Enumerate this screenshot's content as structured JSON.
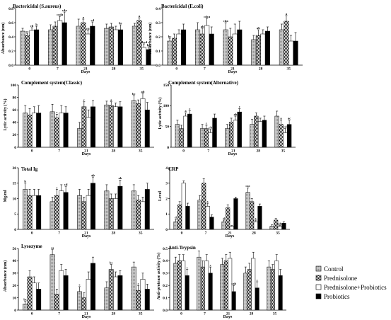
{
  "figure": {
    "groups": [
      "Control",
      "Prednisolone",
      "Prednisolone+Probiotics",
      "Probiotics"
    ],
    "group_styles": [
      {
        "fill": "#bdbdbd",
        "pattern": "grey"
      },
      {
        "fill": "#222222",
        "pattern": "check"
      },
      {
        "fill": "#ffffff",
        "pattern": "none"
      },
      {
        "fill": "#000000",
        "pattern": "none"
      }
    ]
  },
  "legend": {
    "position": "bottom-right",
    "items": [
      "Control",
      "Prednisolone",
      "Prednisolone+Probiotics",
      "Probiotics"
    ]
  },
  "chart_data": [
    {
      "type": "bar",
      "title": "Bactericidal (S.aureus)",
      "ylabel": "Absorbance (nm)",
      "xlabel": "Days",
      "categories": [
        "0",
        "7",
        "21",
        "28",
        "35"
      ],
      "ylim": [
        0,
        0.8
      ],
      "yticks": [
        0.0,
        0.2,
        0.4,
        0.6,
        0.8
      ],
      "ytick_labels": [
        "0.0",
        "0.2",
        "0.4",
        "0.6",
        "0.8"
      ],
      "series": [
        {
          "name": "Control",
          "values": [
            0.48,
            0.5,
            0.55,
            0.52,
            0.55
          ],
          "errors": [
            0.04,
            0.07,
            0.1,
            0.06,
            0.04
          ],
          "labels": [
            "",
            "",
            "",
            "",
            ""
          ]
        },
        {
          "name": "Prednisolone",
          "values": [
            0.42,
            0.55,
            0.6,
            0.54,
            0.63
          ],
          "errors": [
            0.03,
            0.06,
            0.05,
            0.05,
            0.04
          ],
          "labels": [
            "cc",
            "",
            "a",
            "",
            "a"
          ]
        },
        {
          "name": "Prednisolone+Probiotics",
          "values": [
            0.49,
            0.63,
            0.44,
            0.5,
            0.25
          ],
          "errors": [
            0.04,
            0.06,
            0.05,
            0.05,
            0.05
          ],
          "labels": [
            "cb",
            "ccda",
            "cb",
            "",
            "abcd"
          ]
        },
        {
          "name": "Probiotics",
          "values": [
            0.5,
            0.6,
            0.55,
            0.5,
            0.22
          ],
          "errors": [
            0.05,
            0.15,
            0.06,
            0.07,
            0.04
          ],
          "labels": [
            "b",
            "cda",
            "cd",
            "bc",
            "bc"
          ]
        }
      ]
    },
    {
      "type": "bar",
      "title": "Bactericidal (E.coli)",
      "ylabel": "Absorbance (nm)",
      "xlabel": "Days",
      "categories": [
        "0",
        "7",
        "21",
        "28",
        "35"
      ],
      "ylim": [
        0,
        0.4
      ],
      "yticks": [
        0.0,
        0.1,
        0.2,
        0.3,
        0.4
      ],
      "ytick_labels": [
        "0.0",
        "0.1",
        "0.2",
        "0.3",
        "0.4"
      ],
      "series": [
        {
          "name": "Control",
          "values": [
            0.17,
            0.25,
            0.25,
            0.18,
            0.25
          ],
          "errors": [
            0.02,
            0.05,
            0.05,
            0.03,
            0.04
          ],
          "labels": [
            "bc",
            "",
            "cda",
            "",
            ""
          ]
        },
        {
          "name": "Prednisolone",
          "values": [
            0.19,
            0.22,
            0.2,
            0.21,
            0.31
          ],
          "errors": [
            0.03,
            0.04,
            0.06,
            0.04,
            0.04
          ],
          "labels": [
            "",
            "ab",
            "",
            "ab",
            "a"
          ]
        },
        {
          "name": "Prednisolone+Probiotics",
          "values": [
            0.22,
            0.28,
            0.22,
            0.22,
            0.17
          ],
          "errors": [
            0.03,
            0.05,
            0.07,
            0.03,
            0.04
          ],
          "labels": [
            "",
            "cdca",
            "",
            "",
            ""
          ]
        },
        {
          "name": "Probiotics",
          "values": [
            0.25,
            0.22,
            0.25,
            0.24,
            0.17
          ],
          "errors": [
            0.04,
            0.05,
            0.06,
            0.03,
            0.06
          ],
          "labels": [
            "",
            "",
            "",
            "",
            ""
          ]
        }
      ]
    },
    {
      "type": "bar",
      "title": "Complement system(Classic)",
      "ylabel": "Lytic activity (%)",
      "xlabel": "Days",
      "categories": [
        "0",
        "7",
        "21",
        "28",
        "35"
      ],
      "ylim": [
        0,
        100
      ],
      "yticks": [
        0,
        20,
        40,
        60,
        80,
        100
      ],
      "ytick_labels": [
        "0",
        "20",
        "40",
        "60",
        "80",
        "100"
      ],
      "series": [
        {
          "name": "Control",
          "values": [
            55,
            57,
            30,
            68,
            75
          ],
          "errors": [
            12,
            12,
            10,
            6,
            8
          ],
          "labels": [
            "",
            "",
            "",
            "",
            "bc"
          ]
        },
        {
          "name": "Prednisolone",
          "values": [
            52,
            47,
            65,
            67,
            70
          ],
          "errors": [
            10,
            6,
            8,
            6,
            6
          ],
          "labels": [
            "",
            "c",
            "c",
            "a",
            ""
          ]
        },
        {
          "name": "Prednisolone+Probiotics",
          "values": [
            55,
            55,
            48,
            65,
            78
          ],
          "errors": [
            10,
            12,
            12,
            6,
            8
          ],
          "labels": [
            "",
            "",
            "",
            "",
            "ab"
          ]
        },
        {
          "name": "Probiotics",
          "values": [
            55,
            55,
            65,
            65,
            60
          ],
          "errors": [
            12,
            10,
            10,
            8,
            12
          ],
          "labels": [
            "",
            "",
            "",
            "",
            ""
          ]
        }
      ]
    },
    {
      "type": "bar",
      "title": "Complement system(Alternative)",
      "ylabel": "Lytic activity (%)",
      "xlabel": "Days",
      "categories": [
        "0",
        "7",
        "21",
        "28",
        "35"
      ],
      "ylim": [
        0,
        150
      ],
      "yticks": [
        0,
        50,
        100,
        150
      ],
      "ytick_labels": [
        "0",
        "50",
        "100",
        "150"
      ],
      "series": [
        {
          "name": "Control",
          "values": [
            55,
            45,
            45,
            55,
            75
          ],
          "errors": [
            10,
            10,
            10,
            12,
            12
          ],
          "labels": [
            "",
            "",
            "",
            "",
            ""
          ]
        },
        {
          "name": "Prednisolone",
          "values": [
            45,
            45,
            60,
            75,
            55
          ],
          "errors": [
            8,
            8,
            10,
            8,
            10
          ],
          "labels": [
            "",
            "c",
            "",
            "",
            "a"
          ]
        },
        {
          "name": "Prednisolone+Probiotics",
          "values": [
            75,
            35,
            65,
            62,
            35
          ],
          "errors": [
            8,
            8,
            10,
            8,
            10
          ],
          "labels": [
            "a",
            "cb",
            "ab",
            "",
            "cd"
          ]
        },
        {
          "name": "Probiotics",
          "values": [
            80,
            70,
            85,
            65,
            55
          ],
          "errors": [
            8,
            10,
            8,
            10,
            10
          ],
          "labels": [
            "c",
            "",
            "c",
            "",
            "ac"
          ]
        }
      ]
    },
    {
      "type": "bar",
      "title": "Total Ig",
      "ylabel": "Mg/ml",
      "xlabel": "Days",
      "categories": [
        "0",
        "7",
        "21",
        "28",
        "35"
      ],
      "ylim": [
        0,
        20
      ],
      "yticks": [
        0,
        5,
        10,
        15,
        20
      ],
      "ytick_labels": [
        "0",
        "5",
        "10",
        "15",
        "20"
      ],
      "series": [
        {
          "name": "Control",
          "values": [
            13,
            9,
            11,
            12.5,
            12.5
          ],
          "errors": [
            2,
            1.5,
            2,
            2,
            2
          ],
          "labels": [
            "b",
            "",
            "",
            "",
            ""
          ]
        },
        {
          "name": "Prednisolone",
          "values": [
            11,
            11,
            9,
            10,
            9.5
          ],
          "errors": [
            2,
            2,
            1.5,
            1.5,
            1.5
          ],
          "labels": [
            "",
            "c",
            "",
            "",
            ""
          ]
        },
        {
          "name": "Prednisolone+Probiotics",
          "values": [
            11,
            12.5,
            11,
            10,
            9
          ],
          "errors": [
            2,
            2,
            2,
            1.5,
            1.5
          ],
          "labels": [
            "",
            "",
            "",
            "",
            ""
          ]
        },
        {
          "name": "Probiotics",
          "values": [
            11,
            12,
            15,
            14,
            13
          ],
          "errors": [
            2,
            2,
            2,
            2,
            2
          ],
          "labels": [
            "",
            "cd",
            "ab",
            "ab",
            ""
          ]
        }
      ]
    },
    {
      "type": "bar",
      "title": "CRP",
      "ylabel": "Level",
      "xlabel": "Days",
      "categories": [
        "0",
        "7",
        "21",
        "28",
        "35"
      ],
      "ylim": [
        0,
        4
      ],
      "yticks": [
        0,
        1,
        2,
        3,
        4
      ],
      "ytick_labels": [
        "0",
        "1",
        "2",
        "3",
        "4"
      ],
      "series": [
        {
          "name": "Control",
          "values": [
            0.5,
            1.9,
            0.5,
            2.4,
            0.2
          ],
          "errors": [
            0.15,
            0.3,
            0.1,
            0.3,
            0.1
          ],
          "labels": [
            "d",
            "",
            "d",
            "cac",
            ""
          ]
        },
        {
          "name": "Prednisolone",
          "values": [
            1.6,
            3.0,
            1.4,
            1.8,
            0.6
          ],
          "errors": [
            0.2,
            0.3,
            0.2,
            0.2,
            0.1
          ],
          "labels": [
            "",
            "",
            "",
            "",
            ""
          ]
        },
        {
          "name": "Prednisolone+Probiotics",
          "values": [
            3.0,
            1.5,
            0.2,
            0.5,
            0.2
          ],
          "errors": [
            0.15,
            0.2,
            0.05,
            0.1,
            0.05
          ],
          "labels": [
            "",
            "c",
            "",
            "c",
            "ab"
          ]
        },
        {
          "name": "Probiotics",
          "values": [
            1.5,
            0.8,
            2.0,
            1.5,
            0.4
          ],
          "errors": [
            0.2,
            0.15,
            0.1,
            0.15,
            0.1
          ],
          "labels": [
            "",
            "",
            "",
            "",
            ""
          ]
        }
      ]
    },
    {
      "type": "bar",
      "title": "Lysozyme",
      "ylabel": "Absorbance (nm)",
      "xlabel": "Days",
      "categories": [
        "0",
        "7",
        "21",
        "28",
        "35"
      ],
      "ylim": [
        0,
        50
      ],
      "yticks": [
        0,
        10,
        20,
        30,
        40,
        50
      ],
      "ytick_labels": [
        "0",
        "10",
        "20",
        "30",
        "40",
        "50"
      ],
      "series": [
        {
          "name": "Control",
          "values": [
            5,
            45,
            15,
            18,
            35
          ],
          "errors": [
            2,
            4,
            4,
            5,
            4
          ],
          "labels": [
            "bc",
            "ca",
            "c",
            "",
            ""
          ]
        },
        {
          "name": "Prednisolone",
          "values": [
            27,
            13,
            10,
            33,
            16
          ],
          "errors": [
            5,
            4,
            4,
            4,
            4
          ],
          "labels": [
            "",
            "",
            "",
            "bc",
            "c"
          ]
        },
        {
          "name": "Prednisolone+Probiotics",
          "values": [
            22,
            32,
            25,
            27,
            25
          ],
          "errors": [
            5,
            5,
            6,
            4,
            5
          ],
          "labels": [
            "",
            "",
            "",
            "",
            ""
          ]
        },
        {
          "name": "Probiotics",
          "values": [
            17,
            28,
            38,
            28,
            17
          ],
          "errors": [
            5,
            5,
            5,
            4,
            4
          ],
          "labels": [
            "",
            "",
            "",
            "",
            ""
          ]
        }
      ]
    },
    {
      "type": "bar",
      "title": "Anti-Trypsin",
      "ylabel": "Anti-protease activity (%)",
      "xlabel": "Days",
      "categories": [
        "0",
        "7",
        "21",
        "28",
        "35"
      ],
      "ylim": [
        0,
        0.5
      ],
      "yticks": [
        0.0,
        0.1,
        0.2,
        0.3,
        0.4,
        0.5
      ],
      "ytick_labels": [
        "0.0",
        "0.1",
        "0.2",
        "0.3",
        "0.4",
        "0.5"
      ],
      "series": [
        {
          "name": "Control",
          "values": [
            0.38,
            0.43,
            0.37,
            0.3,
            0.35
          ],
          "errors": [
            0.05,
            0.05,
            0.05,
            0.05,
            0.05
          ],
          "labels": [
            "",
            "",
            "",
            "",
            ""
          ]
        },
        {
          "name": "Prednisolone",
          "values": [
            0.4,
            0.35,
            0.4,
            0.33,
            0.33
          ],
          "errors": [
            0.05,
            0.05,
            0.05,
            0.05,
            0.04
          ],
          "labels": [
            "",
            "",
            "",
            "",
            ""
          ]
        },
        {
          "name": "Prednisolone+Probiotics",
          "values": [
            0.4,
            0.4,
            0.42,
            0.42,
            0.4
          ],
          "errors": [
            0.05,
            0.05,
            0.05,
            0.05,
            0.05
          ],
          "labels": [
            "",
            "",
            "",
            "",
            ""
          ]
        },
        {
          "name": "Probiotics",
          "values": [
            0.28,
            0.3,
            0.15,
            0.18,
            0.28
          ],
          "errors": [
            0.05,
            0.05,
            0.05,
            0.05,
            0.05
          ],
          "labels": [
            "c",
            "c",
            "cab",
            "c",
            ""
          ]
        }
      ]
    }
  ]
}
